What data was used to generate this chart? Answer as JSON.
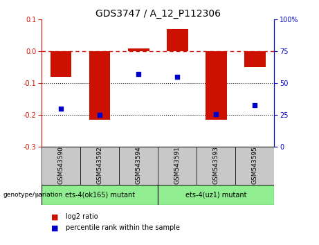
{
  "title": "GDS3747 / A_12_P112306",
  "categories": [
    "GSM543590",
    "GSM543592",
    "GSM543594",
    "GSM543591",
    "GSM543593",
    "GSM543595"
  ],
  "log2_ratio": [
    -0.08,
    -0.215,
    0.01,
    0.07,
    -0.215,
    -0.05
  ],
  "percentile_rank": [
    30,
    25,
    57,
    55,
    26,
    33
  ],
  "bar_color": "#cc1100",
  "dot_color": "#0000cc",
  "ylim_left": [
    -0.3,
    0.1
  ],
  "ylim_right": [
    0,
    100
  ],
  "yticks_left": [
    -0.3,
    -0.2,
    -0.1,
    0.0,
    0.1
  ],
  "yticks_right": [
    0,
    25,
    50,
    75,
    100
  ],
  "hline_y": 0,
  "dotted_lines": [
    -0.1,
    -0.2
  ],
  "group1_label": "ets-4(ok165) mutant",
  "group2_label": "ets-4(uz1) mutant",
  "group1_indices": [
    0,
    1,
    2
  ],
  "group2_indices": [
    3,
    4,
    5
  ],
  "group1_color": "#90EE90",
  "group2_color": "#90EE90",
  "genotype_label": "genotype/variation",
  "legend_red": "log2 ratio",
  "legend_blue": "percentile rank within the sample",
  "bar_width": 0.55,
  "background_color": "#ffffff",
  "tick_label_area_color": "#c8c8c8",
  "group_area_color": "#90EE90"
}
